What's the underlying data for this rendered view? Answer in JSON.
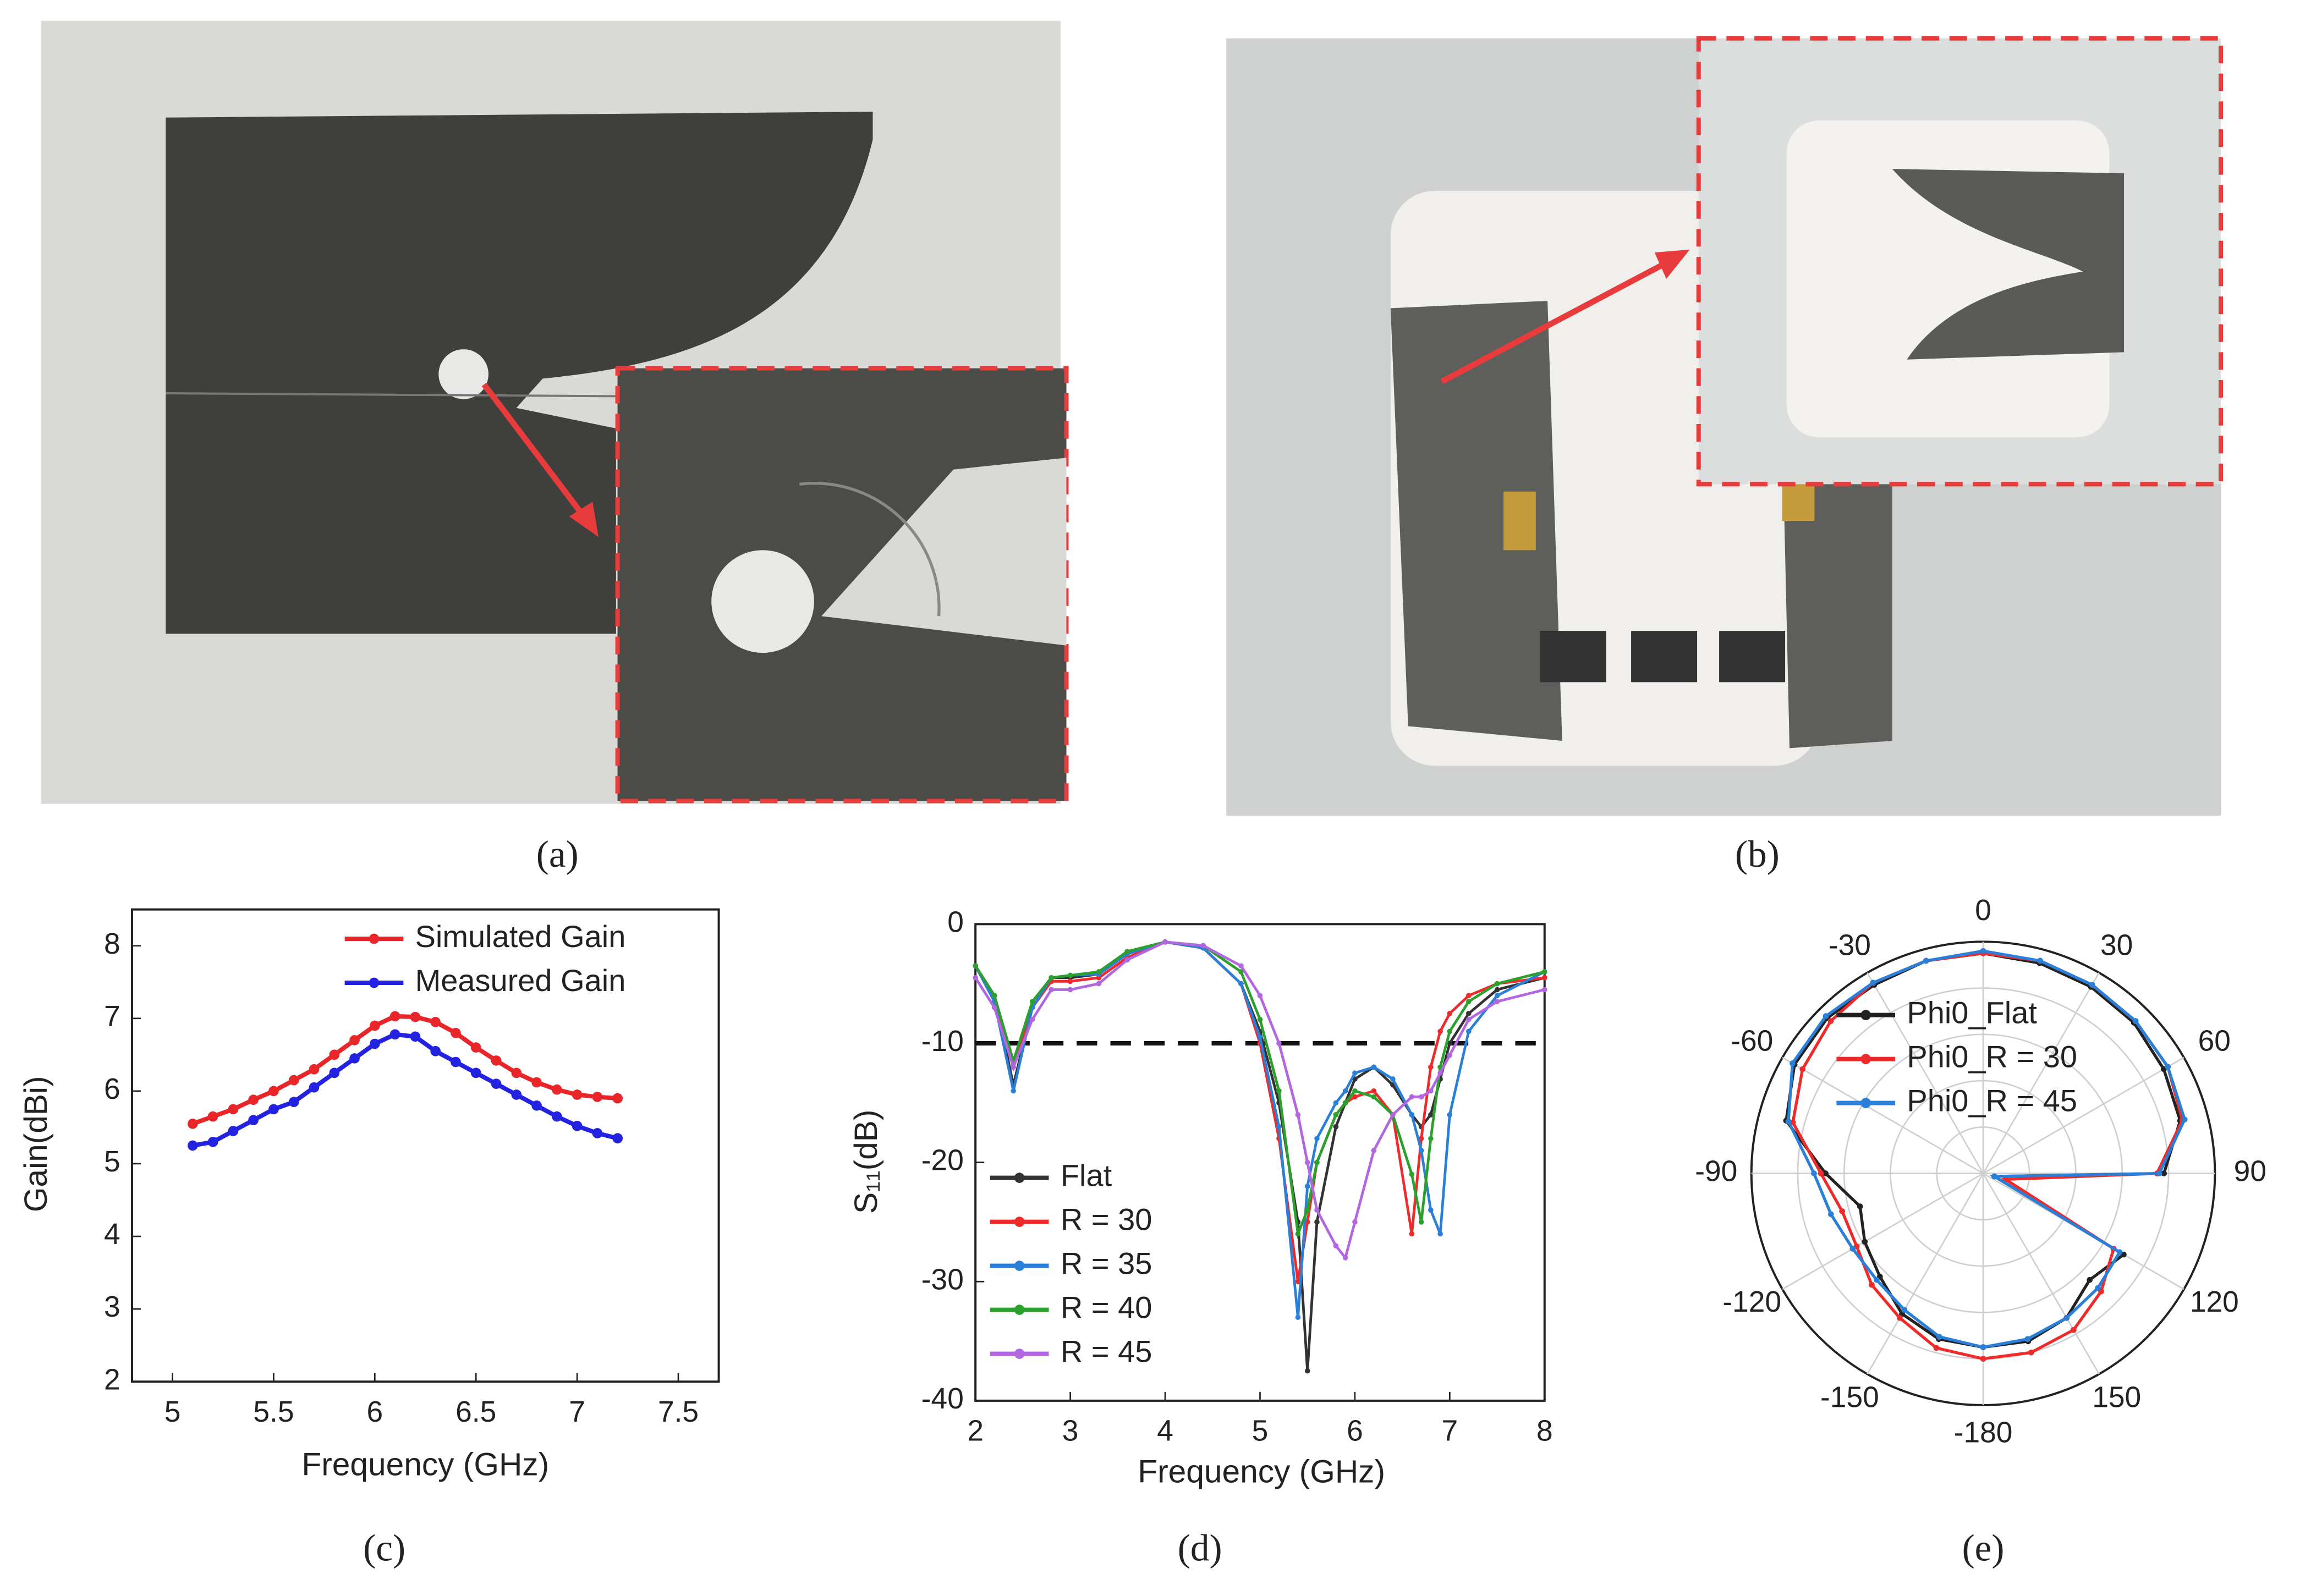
{
  "panel_labels": [
    "(a)",
    "(b)",
    "(c)",
    "(d)",
    "(e)"
  ],
  "chart_data": [
    {
      "type": "line",
      "x_label": "Frequency (GHz)",
      "y_label": "Gain(dBi)",
      "x": [
        5.1,
        5.2,
        5.3,
        5.4,
        5.5,
        5.6,
        5.7,
        5.8,
        5.9,
        6.0,
        6.1,
        6.2,
        6.3,
        6.4,
        6.5,
        6.6,
        6.7,
        6.8,
        6.9,
        7.0,
        7.1,
        7.2
      ],
      "series": [
        {
          "name": "Simulated Gain",
          "color": "#e8262a",
          "values": [
            5.55,
            5.65,
            5.75,
            5.88,
            6.0,
            6.15,
            6.3,
            6.5,
            6.7,
            6.9,
            7.03,
            7.02,
            6.95,
            6.8,
            6.6,
            6.42,
            6.25,
            6.12,
            6.02,
            5.95,
            5.92,
            5.9
          ]
        },
        {
          "name": "Measured Gain",
          "color": "#2222e0",
          "values": [
            5.25,
            5.3,
            5.45,
            5.6,
            5.75,
            5.85,
            6.05,
            6.25,
            6.45,
            6.65,
            6.78,
            6.75,
            6.55,
            6.4,
            6.25,
            6.1,
            5.95,
            5.8,
            5.65,
            5.52,
            5.42,
            5.35
          ]
        }
      ],
      "xlim": [
        4.8,
        7.7
      ],
      "xticks": [
        5.0,
        5.5,
        6.0,
        6.5,
        7.0,
        7.5
      ],
      "ylim": [
        2,
        8.5
      ],
      "yticks": [
        2,
        3,
        4,
        5,
        6,
        7,
        8
      ],
      "legend": "upper right"
    },
    {
      "type": "line",
      "x_label": "Frequency (GHz)",
      "y_label": "S₁₁(dB)",
      "x": [
        2,
        2.2,
        2.4,
        2.6,
        2.8,
        3,
        3.3,
        3.6,
        4,
        4.4,
        4.8,
        5,
        5.2,
        5.4,
        5.5,
        5.6,
        5.8,
        5.9,
        6,
        6.2,
        6.4,
        6.6,
        6.7,
        6.8,
        6.9,
        7,
        7.2,
        7.5,
        8
      ],
      "series": [
        {
          "name": "Flat",
          "color": "#333333",
          "values": [
            -3.5,
            -6,
            -13.5,
            -7,
            -4.5,
            -4.5,
            -4.2,
            -2.5,
            -1.5,
            -2,
            -5,
            -9,
            -15,
            -25,
            -37.5,
            -25,
            -17,
            -15,
            -13,
            -12,
            -13.5,
            -16,
            -17,
            -16,
            -13,
            -10,
            -7.5,
            -5.5,
            -4.5
          ]
        },
        {
          "name": "R = 30",
          "color": "#ee2a2a",
          "values": [
            -3.5,
            -6,
            -12,
            -7,
            -4.8,
            -4.8,
            -4.5,
            -2.8,
            -1.5,
            -2,
            -5,
            -10,
            -18,
            -30,
            -25,
            -20,
            -16,
            -15,
            -14.5,
            -14,
            -16,
            -26,
            -18,
            -12,
            -9,
            -7.5,
            -6,
            -5,
            -4.5
          ]
        },
        {
          "name": "R = 35",
          "color": "#2a7fd8",
          "values": [
            -3.5,
            -6.5,
            -14,
            -7,
            -4.5,
            -4.3,
            -4.2,
            -2.5,
            -1.5,
            -2,
            -5,
            -9.5,
            -17,
            -33,
            -22,
            -18,
            -15,
            -14,
            -12.5,
            -12,
            -13,
            -16,
            -19,
            -24,
            -26,
            -16,
            -9,
            -6,
            -4
          ]
        },
        {
          "name": "R = 40",
          "color": "#2ca02c",
          "values": [
            -3.5,
            -6,
            -11.5,
            -6.5,
            -4.5,
            -4.3,
            -4,
            -2.3,
            -1.5,
            -1.8,
            -4,
            -8,
            -14,
            -26,
            -24,
            -20,
            -16,
            -15,
            -14,
            -14.5,
            -16,
            -21,
            -25,
            -18,
            -12,
            -9,
            -6.5,
            -5,
            -4
          ]
        },
        {
          "name": "R = 45",
          "color": "#b266e0",
          "values": [
            -4.5,
            -7,
            -12,
            -8,
            -5.5,
            -5.5,
            -5,
            -3,
            -1.5,
            -1.8,
            -3.5,
            -6,
            -10,
            -16,
            -20,
            -24,
            -27,
            -28,
            -25,
            -19,
            -16,
            -14.5,
            -14.5,
            -14,
            -12.5,
            -11,
            -8,
            -6.5,
            -5.5
          ]
        }
      ],
      "hline": -10,
      "xlim": [
        2,
        8
      ],
      "xticks": [
        2,
        3,
        4,
        5,
        6,
        7,
        8
      ],
      "ylim": [
        -40,
        0
      ],
      "yticks": [
        -40,
        -30,
        -20,
        -10,
        0
      ],
      "legend": "lower left"
    },
    {
      "type": "polar",
      "theta": [
        -180,
        -165,
        -150,
        -135,
        -120,
        -105,
        -90,
        -75,
        -60,
        -45,
        -30,
        -15,
        0,
        15,
        30,
        45,
        60,
        75,
        90,
        105,
        120,
        135,
        150,
        165,
        180
      ],
      "series": [
        {
          "name": "Phi0_Flat",
          "color": "#222222",
          "values": [
            7.5,
            7.4,
            7.0,
            6.3,
            5.9,
            5.5,
            6.8,
            8.8,
            9.4,
            9.5,
            9.4,
            9.5,
            9.5,
            9.4,
            9.3,
            9.2,
            9.0,
            8.8,
            7.8,
            0.5,
            7.0,
            6.5,
            7.2,
            7.5,
            7.5
          ]
        },
        {
          "name": "Phi0_R = 30",
          "color": "#ee2a2a",
          "values": [
            8.0,
            7.8,
            7.2,
            6.8,
            6.3,
            6.3,
            7.0,
            8.5,
            9.0,
            9.3,
            9.5,
            9.5,
            9.5,
            9.5,
            9.4,
            9.3,
            9.2,
            8.9,
            7.5,
            1.0,
            6.5,
            7.2,
            7.8,
            8.0,
            8.0
          ]
        },
        {
          "name": "Phi0_R = 45",
          "color": "#2a7fd8",
          "values": [
            7.5,
            7.3,
            6.8,
            6.5,
            6.5,
            6.8,
            7.3,
            8.7,
            9.5,
            9.6,
            9.5,
            9.5,
            9.6,
            9.5,
            9.4,
            9.3,
            9.2,
            9.0,
            7.6,
            0.5,
            6.8,
            7.0,
            7.2,
            7.4,
            7.5
          ]
        }
      ],
      "thetaticks": [
        0,
        30,
        60,
        90,
        120,
        150,
        -180,
        -150,
        -120,
        -90,
        -60,
        -30
      ],
      "rlim": [
        0,
        10
      ],
      "rticks": [
        2,
        4,
        6,
        8,
        10
      ],
      "legend": "center left"
    }
  ]
}
